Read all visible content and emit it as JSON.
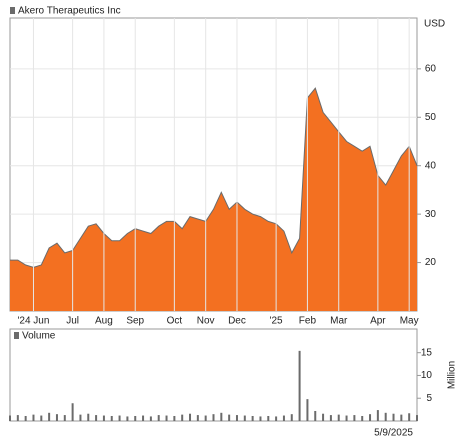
{
  "chart_data": [
    {
      "type": "area",
      "title": "Akero Therapeutics Inc",
      "y_label": "USD",
      "color": "#f37021",
      "line_color": "#6b6b6b",
      "grid": true,
      "categories": [
        null,
        null,
        null,
        "'24 Jun",
        null,
        null,
        null,
        null,
        "Jul",
        null,
        null,
        null,
        "Aug",
        null,
        null,
        null,
        "Sep",
        null,
        null,
        null,
        null,
        "Oct",
        null,
        null,
        null,
        "Nov",
        null,
        null,
        null,
        "Dec",
        null,
        null,
        null,
        null,
        "'25",
        null,
        null,
        null,
        "Feb",
        null,
        null,
        null,
        "Mar",
        null,
        null,
        null,
        null,
        "Apr",
        null,
        null,
        null,
        "May",
        null
      ],
      "values": [
        20.5,
        20.5,
        19.5,
        19,
        19.5,
        23,
        24,
        22,
        22.5,
        25,
        27.5,
        28,
        26,
        24.5,
        24.5,
        26,
        27,
        26.5,
        26,
        27.5,
        28.5,
        28.5,
        27,
        29.5,
        29,
        28.5,
        31,
        34.5,
        31,
        32.5,
        31,
        30,
        29.5,
        28.5,
        28,
        26.5,
        22,
        25,
        54,
        56,
        51,
        49,
        47,
        45,
        44,
        43,
        44,
        38,
        36,
        39,
        42,
        44,
        40
      ],
      "ylim": [
        10,
        70.5
      ],
      "yticks": [
        20,
        30,
        40,
        50,
        60
      ]
    },
    {
      "type": "bar",
      "title": "Volume",
      "y_label": "Million",
      "color": "#6b6b6b",
      "annotation": "5/9/2025",
      "values": [
        1.2,
        1.3,
        1.1,
        1.4,
        1.2,
        1.8,
        1.5,
        1.3,
        3.9,
        1.4,
        1.6,
        1.3,
        1.2,
        1.1,
        1.2,
        1.0,
        1.1,
        1.2,
        1.0,
        1.3,
        1.2,
        1.1,
        1.4,
        1.6,
        1.3,
        1.2,
        1.5,
        1.8,
        1.4,
        1.3,
        1.2,
        1.1,
        1.0,
        1.1,
        1.0,
        1.2,
        1.5,
        15.4,
        4.8,
        2.2,
        1.6,
        1.3,
        1.4,
        1.2,
        1.3,
        1.1,
        1.5,
        2.4,
        1.8,
        1.6,
        1.4,
        1.7,
        1.3
      ],
      "ylim": [
        0,
        20.2
      ],
      "yticks": [
        5,
        10,
        15
      ]
    }
  ]
}
